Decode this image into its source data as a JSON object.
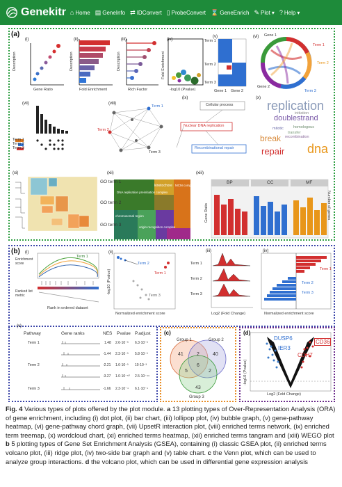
{
  "nav": {
    "brand": "Genekitr",
    "items": [
      {
        "label": "Home",
        "icon": "home-icon",
        "glyph": "⌂"
      },
      {
        "label": "GeneInfo",
        "icon": "info-icon",
        "glyph": "▤"
      },
      {
        "label": "IDConvert",
        "icon": "swap-icon",
        "glyph": "⇄"
      },
      {
        "label": "ProbeConvert",
        "icon": "probe-icon",
        "glyph": "▯"
      },
      {
        "label": "GeneEnrich",
        "icon": "enrich-icon",
        "glyph": "⌛"
      },
      {
        "label": "Plot",
        "icon": "brush-icon",
        "glyph": "✎",
        "dropdown": "▾"
      },
      {
        "label": "Help",
        "icon": "help-icon",
        "glyph": "?",
        "dropdown": "▾"
      }
    ],
    "color": "#1e8b3a"
  },
  "panel_a": {
    "label": "(a)",
    "sublabels": [
      "(i)",
      "(ii)",
      "(iii)",
      "(iv)",
      "(v)",
      "(vi)",
      "(vii)",
      "(viii)",
      "(ix)",
      "(x)",
      "(xi)",
      "(xii)",
      "(xiii)"
    ],
    "axis": {
      "description": "Description",
      "gene_ratio": "Gene Ratio",
      "fold_enrichment": "Fold Enrichment",
      "rich_factor": "Rich Factor",
      "neglog10p": "-log10 (Pvalue)",
      "term1": "Term 1",
      "term2": "Term 2",
      "term3": "Term 3",
      "gene1": "Gene 1",
      "gene2": "Gene 2",
      "gene_ratio_y": "Gene Ratio",
      "number_genes": "Number of genes"
    },
    "ix_boxes": [
      "Cellular process",
      "Nuclear DNA replication",
      "Recombinational repair"
    ],
    "wordcloud": [
      "replication",
      "doublestrand",
      "break",
      "repair",
      "dna",
      "initiation",
      "homologous",
      "mitotic",
      "recombination",
      "transfer"
    ],
    "heatmap_terms": [
      "GO term 1",
      "GO term 2",
      "GO term 3"
    ],
    "treemap_labels": [
      "DNA replication preinitiation complex",
      "kinetochore",
      "MCM complex",
      "chromosomal region",
      "origin recognition complex"
    ],
    "wego_cats": [
      "BP",
      "CC",
      "MF"
    ]
  },
  "panel_b": {
    "label": "(b)",
    "sublabels": [
      "(i)",
      "(ii)",
      "(iii)",
      "(iv)",
      "(v)"
    ],
    "gsea": {
      "enrichment_score": "Enrichment score",
      "ranked_metric": "Ranked list metric",
      "rank_x": "Rank in ordered dataset",
      "term1": "Term 1"
    },
    "volcano": {
      "y": "-log10 (Pvalue)",
      "x": "Normalized enrichment score",
      "terms": [
        "Term 1",
        "Term 2",
        "Term 3"
      ]
    },
    "ridge": {
      "x": "Log2 (Fold Change)",
      "terms": [
        "Term 1",
        "Term 2",
        "Term 3"
      ]
    },
    "twoside": {
      "x": "Normalized enrichment score",
      "terms": [
        "Term 1",
        "Term 2",
        "Term 3"
      ]
    },
    "table": {
      "headers": [
        "Pathway",
        "Gene ranks",
        "NES",
        "Pvalue",
        "P.adjust"
      ],
      "rows": [
        {
          "pathway": "Term 1",
          "nes": "1.48",
          "pvalue": "2.6·10⁻³",
          "padj": "6.3·10⁻³"
        },
        {
          "pathway": "",
          "nes": "-1.44",
          "pvalue": "2.3·10⁻³",
          "padj": "5.8·10⁻³"
        },
        {
          "pathway": "Term 2",
          "nes": "-2.21",
          "pvalue": "1.6·10⁻³",
          "padj": "10·10⁻³"
        },
        {
          "pathway": "",
          "nes": "-3.27",
          "pvalue": "1.0·10⁻⁵⁰",
          "padj": "2.5·10⁻⁴⁹"
        },
        {
          "pathway": "Term 3",
          "nes": "-1.66",
          "pvalue": "2.3·10⁻⁴",
          "padj": "6.1·10⁻⁴"
        }
      ]
    }
  },
  "panel_c": {
    "label": "(c)",
    "groups": [
      "Group 1",
      "Group 2",
      "Group 3"
    ],
    "counts": {
      "g1_only": "41",
      "g2_only": "40",
      "g3_only": "43",
      "g1_g2": "2",
      "g1_g3": "5",
      "g2_g3": "2",
      "all": "6"
    }
  },
  "panel_d": {
    "label": "(d)",
    "genes": [
      "DUSP6",
      "IER3",
      "CD36",
      "CDH7"
    ],
    "y": "-log10 (Pvalue)",
    "x": "Log2 (Fold Change)"
  },
  "caption": {
    "fig": "Fig. 4",
    "text1": " Various types of plots offered by the plot module. ",
    "a": "a",
    "text2": " 13 plotting types of Over-Representation Analysis (ORA) of gene enrichment, including (i) dot plot, (ii) bar chart, (iii) lollipop plot, (iv) bubble graph, (v) gene-pathway heatmap, (vi) gene-pathway chord graph, (vii) UpsetR interaction plot, (viii) enriched terms network, (ix) enriched term treemap, (x) wordcloud chart, (xi) enriched terms heatmap, (xii) enriched terms tangram and (xiii) WEGO plot ",
    "b": "b",
    "text3": " 5 plotting types of Gene Set Enrichment Analysis (GSEA), containing (i) classic GSEA plot, (ii) enriched terms volcano plot, (iii) ridge plot, (iv) two-side bar graph and (v) table chart. ",
    "c": "c",
    "text4": " the Venn plot, which can be used to analyze group interactions. ",
    "d": "d",
    "text5": " the volcano plot, which can be used in differential gene expression analysis"
  }
}
